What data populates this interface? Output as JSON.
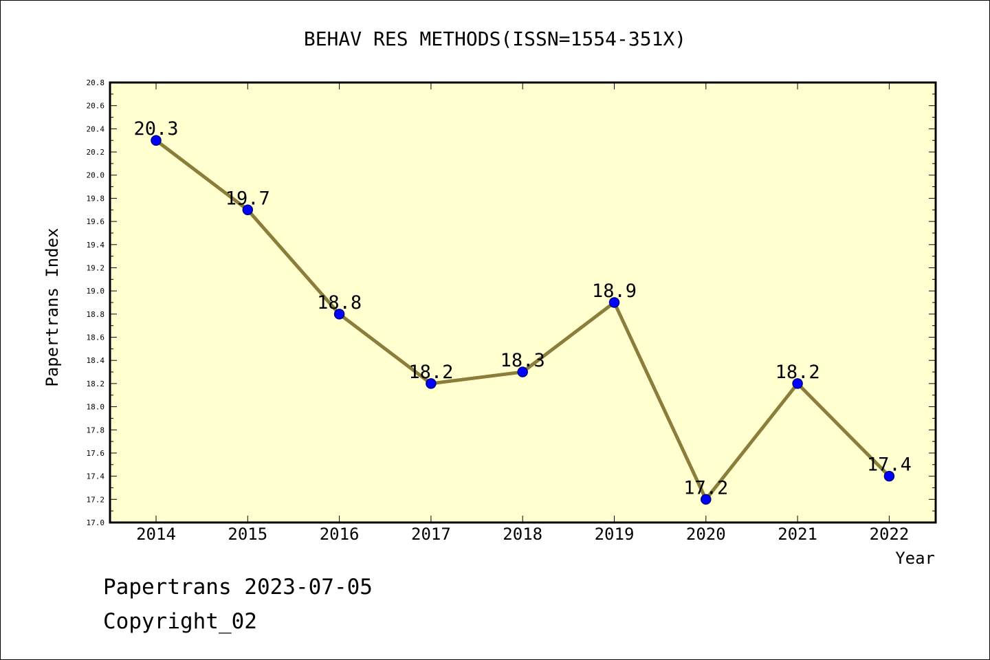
{
  "chart_data": {
    "type": "line",
    "title": "BEHAV RES METHODS(ISSN=1554-351X)",
    "xlabel": "Year",
    "ylabel": "Papertrans Index",
    "categories": [
      "2014",
      "2015",
      "2016",
      "2017",
      "2018",
      "2019",
      "2020",
      "2021",
      "2022"
    ],
    "values": [
      20.3,
      19.7,
      18.8,
      18.2,
      18.3,
      18.9,
      17.2,
      18.2,
      17.4
    ],
    "data_labels": [
      "20.3",
      "19.7",
      "18.8",
      "18.2",
      "18.3",
      "18.9",
      "17.2",
      "18.2",
      "17.4"
    ],
    "ylim": [
      17.0,
      20.8
    ],
    "yticks": [
      "17.0",
      "17.2",
      "17.4",
      "17.6",
      "17.8",
      "18.0",
      "18.2",
      "18.4",
      "18.6",
      "18.8",
      "19.0",
      "19.2",
      "19.4",
      "19.6",
      "19.8",
      "20.0",
      "20.2",
      "20.4",
      "20.6",
      "20.8"
    ],
    "grid": false,
    "colors": {
      "plot_background": "#ffffd0",
      "line": "#8b7d3a",
      "marker": "#0000ff",
      "marker_edge": "#000080"
    }
  },
  "footer": {
    "line1": "Papertrans 2023-07-05",
    "line2": "Copyright_02"
  }
}
